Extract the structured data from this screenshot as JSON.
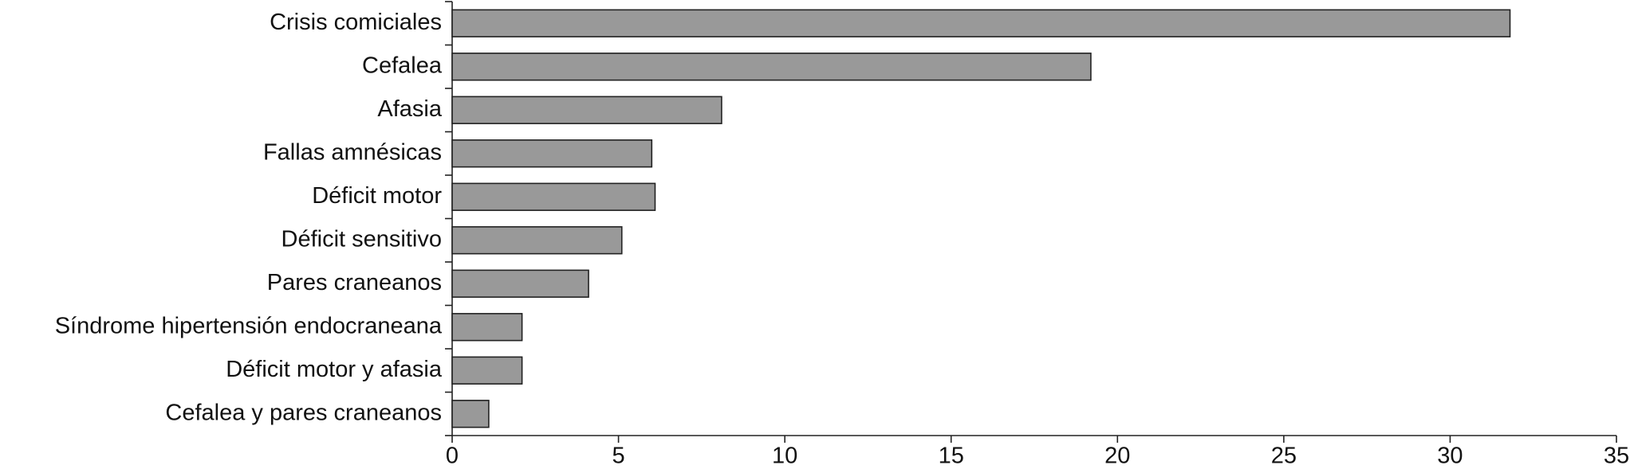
{
  "chart_data": {
    "type": "bar",
    "orientation": "horizontal",
    "categories": [
      "Crisis comiciales",
      "Cefalea",
      "Afasia",
      "Fallas amnésicas",
      "Déficit motor",
      "Déficit sensitivo",
      "Pares craneanos",
      "Síndrome hipertensión endocraneana",
      "Déficit motor y afasia",
      "Cefalea y pares craneanos"
    ],
    "values": [
      31.8,
      19.2,
      8.1,
      6.0,
      6.1,
      5.1,
      4.1,
      2.1,
      2.1,
      1.1
    ],
    "color": "#999999",
    "xlim": [
      0,
      35
    ],
    "xticks": [
      0,
      5,
      10,
      15,
      20,
      25,
      30,
      35
    ],
    "grid": false
  }
}
